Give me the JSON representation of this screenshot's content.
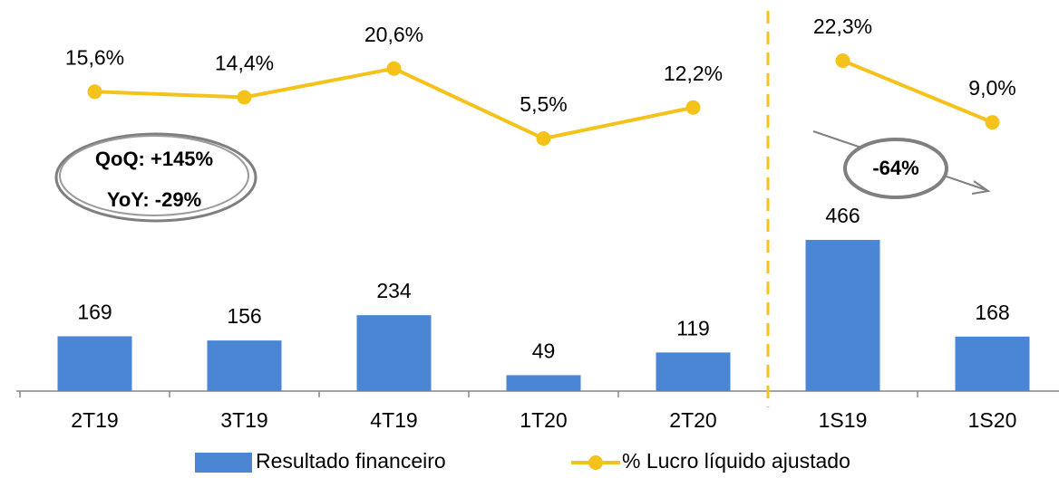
{
  "chart_data": {
    "type": "bar_line",
    "categories": [
      "2T19",
      "3T19",
      "4T19",
      "1T20",
      "2T20",
      "1S19",
      "1S20"
    ],
    "series": [
      {
        "name": "Resultado financeiro",
        "type": "bar",
        "color": "#4a86d4",
        "values": [
          169,
          156,
          234,
          49,
          119,
          466,
          168
        ]
      },
      {
        "name": "% Lucro líquido ajustado",
        "type": "line",
        "axis": "y2",
        "color": "#f5c21b",
        "values": [
          15.6,
          14.4,
          20.6,
          5.5,
          12.2,
          22.3,
          9.0
        ],
        "value_labels": [
          "15,6%",
          "14,4%",
          "20,6%",
          "5,5%",
          "12,2%",
          "22,3%",
          "9,0%"
        ]
      }
    ],
    "ylim": [
      0,
      1200
    ],
    "y2lim": [
      -49,
      35
    ],
    "divider_after": 4,
    "annotations": [
      "QoQ: +145%",
      "YoY:  -29%",
      "-64%"
    ],
    "legend": "bottom"
  }
}
